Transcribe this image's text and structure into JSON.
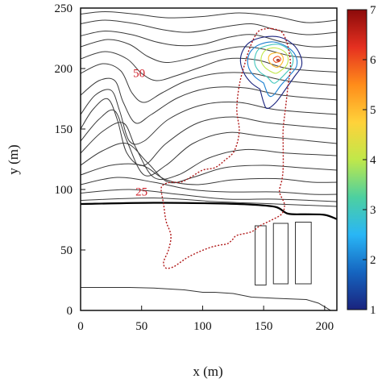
{
  "chart_data": {
    "type": "contour",
    "xlabel": "x (m)",
    "ylabel": "y (m)",
    "xlim": [
      0,
      210
    ],
    "ylim": [
      0,
      250
    ],
    "x_ticks": [
      0,
      50,
      100,
      150,
      200
    ],
    "y_ticks": [
      0,
      50,
      100,
      150,
      200,
      250
    ],
    "colorbar": {
      "tick_labels": [
        "1",
        "2",
        "3",
        "4",
        "5",
        "6",
        "7"
      ],
      "colors": [
        "#1a237e",
        "#1565c0",
        "#29b6f6",
        "#4dd0a0",
        "#c0e84a",
        "#ffd23a",
        "#ff8c1a",
        "#e53020",
        "#8b0a0a"
      ]
    },
    "contour_labels": [
      {
        "text": "50",
        "x": 43,
        "y": 193
      },
      {
        "text": "25",
        "x": 45,
        "y": 95
      }
    ],
    "terrain_contours": [
      [
        [
          0,
          245
        ],
        [
          20,
          247
        ],
        [
          45,
          245
        ],
        [
          70,
          242
        ],
        [
          100,
          243
        ],
        [
          130,
          246
        ],
        [
          160,
          243
        ],
        [
          185,
          238
        ],
        [
          210,
          240
        ]
      ],
      [
        [
          0,
          237
        ],
        [
          20,
          240
        ],
        [
          45,
          237
        ],
        [
          68,
          232
        ],
        [
          90,
          230
        ],
        [
          115,
          234
        ],
        [
          140,
          237
        ],
        [
          160,
          232
        ],
        [
          185,
          228
        ],
        [
          210,
          230
        ]
      ],
      [
        [
          0,
          227
        ],
        [
          20,
          231
        ],
        [
          42,
          228
        ],
        [
          62,
          222
        ],
        [
          80,
          219
        ],
        [
          100,
          220
        ],
        [
          122,
          226
        ],
        [
          142,
          228
        ],
        [
          165,
          222
        ],
        [
          190,
          218
        ],
        [
          210,
          219
        ]
      ],
      [
        [
          0,
          218
        ],
        [
          22,
          224
        ],
        [
          40,
          220
        ],
        [
          55,
          210
        ],
        [
          70,
          205
        ],
        [
          88,
          208
        ],
        [
          105,
          213
        ],
        [
          130,
          218
        ],
        [
          150,
          216
        ],
        [
          175,
          210
        ],
        [
          210,
          208
        ]
      ],
      [
        [
          0,
          208
        ],
        [
          20,
          214
        ],
        [
          38,
          208
        ],
        [
          50,
          196
        ],
        [
          62,
          190
        ],
        [
          78,
          194
        ],
        [
          98,
          201
        ],
        [
          120,
          208
        ],
        [
          145,
          207
        ],
        [
          170,
          200
        ],
        [
          210,
          197
        ]
      ],
      [
        [
          0,
          196
        ],
        [
          18,
          204
        ],
        [
          33,
          198
        ],
        [
          42,
          180
        ],
        [
          52,
          172
        ],
        [
          67,
          180
        ],
        [
          87,
          190
        ],
        [
          112,
          196
        ],
        [
          140,
          196
        ],
        [
          168,
          190
        ],
        [
          210,
          186
        ]
      ],
      [
        [
          0,
          178
        ],
        [
          15,
          190
        ],
        [
          28,
          190
        ],
        [
          35,
          172
        ],
        [
          45,
          155
        ],
        [
          58,
          162
        ],
        [
          80,
          176
        ],
        [
          106,
          184
        ],
        [
          135,
          184
        ],
        [
          165,
          178
        ],
        [
          210,
          174
        ]
      ],
      [
        [
          0,
          162
        ],
        [
          12,
          178
        ],
        [
          25,
          182
        ],
        [
          32,
          165
        ],
        [
          40,
          140
        ],
        [
          52,
          140
        ],
        [
          72,
          158
        ],
        [
          100,
          170
        ],
        [
          130,
          172
        ],
        [
          160,
          166
        ],
        [
          210,
          162
        ]
      ],
      [
        [
          0,
          150
        ],
        [
          10,
          166
        ],
        [
          22,
          175
        ],
        [
          30,
          158
        ],
        [
          38,
          130
        ],
        [
          52,
          120
        ],
        [
          70,
          138
        ],
        [
          96,
          155
        ],
        [
          125,
          160
        ],
        [
          155,
          155
        ],
        [
          210,
          150
        ]
      ],
      [
        [
          0,
          140
        ],
        [
          15,
          158
        ],
        [
          28,
          165
        ],
        [
          38,
          140
        ],
        [
          52,
          112
        ],
        [
          70,
          120
        ],
        [
          92,
          138
        ],
        [
          120,
          147
        ],
        [
          150,
          144
        ],
        [
          210,
          138
        ]
      ],
      [
        [
          0,
          130
        ],
        [
          18,
          148
        ],
        [
          35,
          155
        ],
        [
          45,
          135
        ],
        [
          60,
          110
        ],
        [
          80,
          112
        ],
        [
          105,
          126
        ],
        [
          135,
          133
        ],
        [
          170,
          130
        ],
        [
          210,
          128
        ]
      ],
      [
        [
          0,
          120
        ],
        [
          18,
          132
        ],
        [
          38,
          138
        ],
        [
          55,
          122
        ],
        [
          72,
          106
        ],
        [
          92,
          110
        ],
        [
          118,
          118
        ],
        [
          150,
          120
        ],
        [
          180,
          118
        ],
        [
          210,
          116
        ]
      ],
      [
        [
          0,
          112
        ],
        [
          25,
          120
        ],
        [
          50,
          120
        ],
        [
          70,
          108
        ],
        [
          95,
          104
        ],
        [
          125,
          108
        ],
        [
          160,
          109
        ],
        [
          190,
          106
        ],
        [
          210,
          106
        ]
      ],
      [
        [
          0,
          104
        ],
        [
          30,
          110
        ],
        [
          60,
          106
        ],
        [
          90,
          100
        ],
        [
          120,
          98
        ],
        [
          160,
          98
        ],
        [
          190,
          96
        ],
        [
          210,
          96
        ]
      ],
      [
        [
          0,
          97
        ],
        [
          40,
          100
        ],
        [
          80,
          96
        ],
        [
          120,
          92
        ],
        [
          160,
          92
        ],
        [
          210,
          90
        ]
      ],
      [
        [
          0,
          91
        ],
        [
          60,
          93
        ],
        [
          110,
          90
        ],
        [
          160,
          88
        ],
        [
          210,
          86
        ]
      ]
    ],
    "shoreline": [
      [
        0,
        88
      ],
      [
        60,
        89
      ],
      [
        110,
        88.5
      ],
      [
        140,
        87.5
      ],
      [
        160,
        85.5
      ],
      [
        170,
        80
      ],
      [
        185,
        79.5
      ],
      [
        200,
        79
      ],
      [
        210,
        75.5
      ]
    ],
    "lower_lines": [
      [
        [
          0,
          19
        ],
        [
          40,
          19
        ],
        [
          60,
          18.5
        ],
        [
          85,
          17
        ],
        [
          100,
          15
        ],
        [
          110,
          15
        ],
        [
          125,
          14
        ],
        [
          140,
          11
        ],
        [
          160,
          10
        ],
        [
          185,
          9
        ],
        [
          195,
          6
        ],
        [
          205,
          0
        ]
      ],
      [
        [
          0,
          19
        ],
        [
          15,
          19
        ]
      ]
    ],
    "buildings": [
      {
        "x0": 143,
        "x1": 152,
        "y0": 21,
        "y1": 70
      },
      {
        "x0": 158,
        "x1": 170,
        "y0": 22,
        "y1": 72
      },
      {
        "x0": 176,
        "x1": 189,
        "y0": 22,
        "y1": 73
      }
    ],
    "boundary": [
      [
        157,
        233
      ],
      [
        165,
        230
      ],
      [
        170,
        218
      ],
      [
        172,
        202
      ],
      [
        170,
        186
      ],
      [
        168,
        168
      ],
      [
        166,
        150
      ],
      [
        166,
        135
      ],
      [
        166,
        118
      ],
      [
        165,
        108
      ],
      [
        163,
        98
      ],
      [
        167,
        88
      ],
      [
        165,
        80
      ],
      [
        157,
        75
      ],
      [
        147,
        70
      ],
      [
        140,
        65
      ],
      [
        128,
        62
      ],
      [
        124,
        58
      ],
      [
        120,
        55
      ],
      [
        114,
        54
      ],
      [
        106,
        52
      ],
      [
        96,
        48
      ],
      [
        88,
        44
      ],
      [
        82,
        40
      ],
      [
        76,
        36
      ],
      [
        70,
        35
      ],
      [
        68,
        40
      ],
      [
        72,
        50
      ],
      [
        74,
        62
      ],
      [
        70,
        74
      ],
      [
        68,
        88
      ],
      [
        66,
        100
      ],
      [
        68,
        104
      ],
      [
        74,
        106
      ],
      [
        82,
        106
      ],
      [
        90,
        110
      ],
      [
        100,
        116
      ],
      [
        110,
        118
      ],
      [
        118,
        124
      ],
      [
        126,
        132
      ],
      [
        130,
        148
      ],
      [
        128,
        166
      ],
      [
        130,
        186
      ],
      [
        134,
        202
      ],
      [
        139,
        218
      ],
      [
        145,
        230
      ],
      [
        152,
        233
      ],
      [
        157,
        233
      ]
    ],
    "concentration_contours": [
      {
        "level": 1,
        "pts": [
          [
            147,
            183
          ],
          [
            140,
            188
          ],
          [
            134,
            196
          ],
          [
            131,
            206
          ],
          [
            133,
            215
          ],
          [
            139,
            222
          ],
          [
            150,
            226
          ],
          [
            163,
            226
          ],
          [
            174,
            220
          ],
          [
            180,
            211
          ],
          [
            181,
            202
          ],
          [
            175,
            193
          ],
          [
            168,
            183
          ],
          [
            160,
            172
          ],
          [
            153,
            167
          ],
          [
            150,
            172
          ],
          [
            147,
            183
          ]
        ]
      },
      {
        "level": 2,
        "pts": [
          [
            150,
            188
          ],
          [
            143,
            193
          ],
          [
            138,
            200
          ],
          [
            137,
            208
          ],
          [
            140,
            215
          ],
          [
            147,
            220
          ],
          [
            158,
            222
          ],
          [
            169,
            218
          ],
          [
            176,
            211
          ],
          [
            177,
            202
          ],
          [
            171,
            194
          ],
          [
            164,
            186
          ],
          [
            158,
            178
          ],
          [
            154,
            178
          ],
          [
            150,
            188
          ]
        ]
      },
      {
        "level": 3,
        "pts": [
          [
            153,
            193
          ],
          [
            147,
            197
          ],
          [
            143,
            203
          ],
          [
            143,
            210
          ],
          [
            146,
            216
          ],
          [
            153,
            219
          ],
          [
            162,
            220
          ],
          [
            170,
            216
          ],
          [
            174,
            209
          ],
          [
            173,
            202
          ],
          [
            168,
            196
          ],
          [
            162,
            190
          ],
          [
            158,
            188
          ],
          [
            153,
            193
          ]
        ]
      },
      {
        "level": 4,
        "pts": [
          [
            155,
            198
          ],
          [
            151,
            201
          ],
          [
            148,
            206
          ],
          [
            149,
            212
          ],
          [
            153,
            216
          ],
          [
            160,
            217
          ],
          [
            167,
            214
          ],
          [
            170,
            209
          ],
          [
            169,
            203
          ],
          [
            165,
            199
          ],
          [
            160,
            196
          ],
          [
            155,
            198
          ]
        ]
      },
      {
        "level": 5,
        "pts": [
          [
            158,
            202
          ],
          [
            155,
            205
          ],
          [
            154,
            209
          ],
          [
            156,
            212
          ],
          [
            161,
            213
          ],
          [
            165,
            211
          ],
          [
            166,
            207
          ],
          [
            164,
            203
          ],
          [
            161,
            201
          ],
          [
            158,
            202
          ]
        ]
      },
      {
        "level": 6,
        "pts": [
          [
            160,
            205
          ],
          [
            158,
            207
          ],
          [
            159,
            209
          ],
          [
            162,
            210
          ],
          [
            164,
            208
          ],
          [
            163,
            206
          ],
          [
            160,
            205
          ]
        ]
      },
      {
        "level": 7,
        "pts": [
          [
            161,
            206.5
          ],
          [
            161,
            207.5
          ],
          [
            162.5,
            207.5
          ],
          [
            162.5,
            206.5
          ],
          [
            161,
            206.5
          ]
        ]
      }
    ]
  }
}
